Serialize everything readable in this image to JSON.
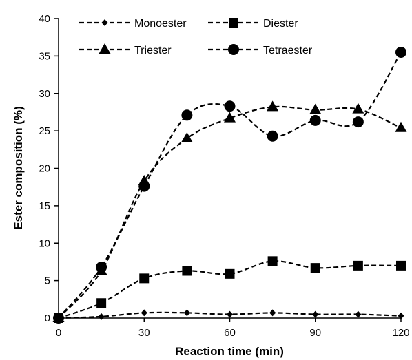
{
  "chart_data": {
    "type": "line",
    "title": "",
    "xlabel": "Reaction time (min)",
    "ylabel": "Ester composition (%)",
    "xlim": [
      0,
      120
    ],
    "ylim": [
      0,
      40
    ],
    "xticks": [
      0,
      30,
      60,
      90,
      120
    ],
    "yticks": [
      0,
      5,
      10,
      15,
      20,
      25,
      30,
      35,
      40
    ],
    "grid": false,
    "legend_position": "top",
    "line_style": "dashed",
    "line_color": "#000000",
    "x": [
      0,
      15,
      30,
      45,
      60,
      75,
      90,
      105,
      120
    ],
    "series": [
      {
        "name": "Monoester",
        "marker": "diamond",
        "values": [
          0,
          0.2,
          0.7,
          0.7,
          0.5,
          0.7,
          0.5,
          0.5,
          0.3
        ]
      },
      {
        "name": "Diester",
        "marker": "square",
        "values": [
          0,
          2.0,
          5.3,
          6.3,
          5.9,
          7.6,
          6.7,
          7.0,
          7.0
        ]
      },
      {
        "name": "Triester",
        "marker": "triangle",
        "values": [
          0,
          6.3,
          18.3,
          24.0,
          26.7,
          28.2,
          27.8,
          27.9,
          25.4
        ]
      },
      {
        "name": "Tetraester",
        "marker": "circle",
        "values": [
          0,
          6.8,
          17.6,
          27.1,
          28.3,
          24.3,
          26.4,
          26.2,
          35.5
        ]
      }
    ]
  }
}
